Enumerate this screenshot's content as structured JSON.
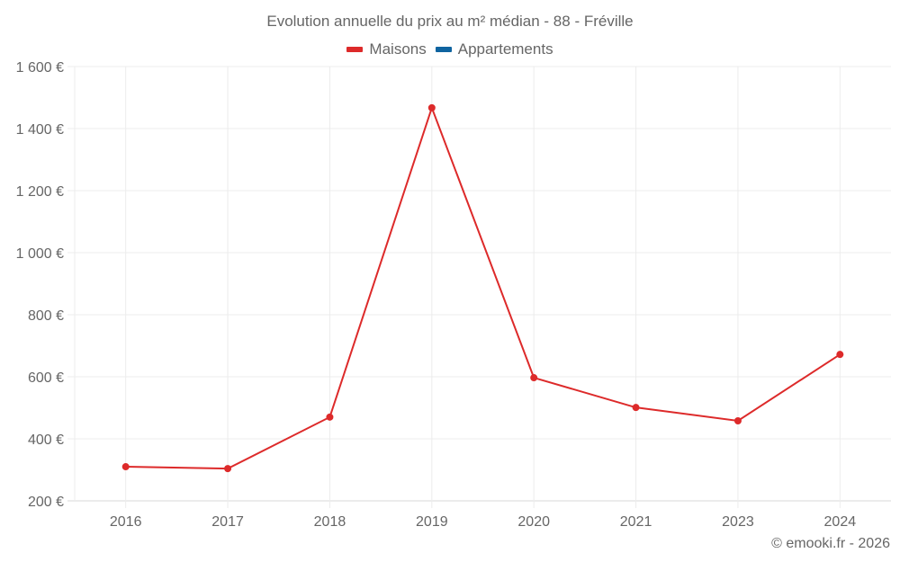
{
  "title": "Evolution annuelle du prix au m² médian - 88 - Fréville",
  "legend": [
    {
      "label": "Maisons",
      "color": "#dd2a2a"
    },
    {
      "label": "Appartements",
      "color": "#0f64a0"
    }
  ],
  "credit": "© emooki.fr - 2026",
  "y_ticks": [
    "1 600 €",
    "1 400 €",
    "1 200 €",
    "1 000 €",
    "800 €",
    "600 €",
    "400 €",
    "200 €"
  ],
  "x_ticks": [
    "2016",
    "2017",
    "2018",
    "2019",
    "2020",
    "2021",
    "2023",
    "2024"
  ],
  "chart_data": {
    "type": "line",
    "title": "Evolution annuelle du prix au m² médian - 88 - Fréville",
    "xlabel": "",
    "ylabel": "",
    "categories": [
      "2016",
      "2017",
      "2018",
      "2019",
      "2020",
      "2021",
      "2023",
      "2024"
    ],
    "series": [
      {
        "name": "Maisons",
        "color": "#dd2a2a",
        "values": [
          310,
          304,
          470,
          1467,
          597,
          501,
          458,
          672
        ]
      },
      {
        "name": "Appartements",
        "color": "#0f64a0",
        "values": []
      }
    ],
    "ylim": [
      200,
      1600
    ],
    "y_tick_values": [
      200,
      400,
      600,
      800,
      1000,
      1200,
      1400,
      1600
    ],
    "y_unit": "€",
    "grid": true,
    "legend_position": "top"
  }
}
